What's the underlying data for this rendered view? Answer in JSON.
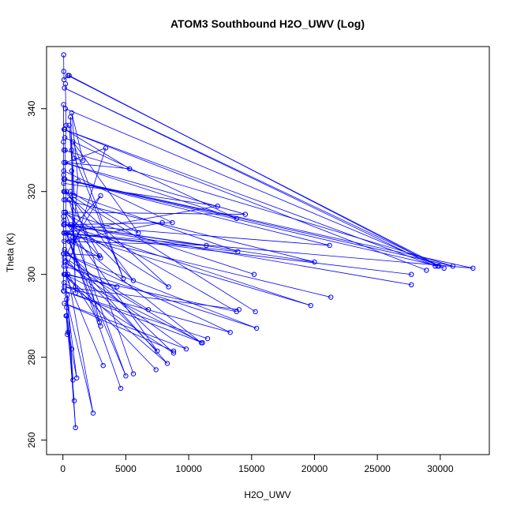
{
  "chart_data": {
    "type": "line",
    "title": "ATOM3 Southbound H2O_UWV (Log)",
    "xlabel": "H2O_UWV",
    "ylabel": "Theta (K)",
    "xlim": [
      -1300,
      33900
    ],
    "ylim": [
      256.5,
      355
    ],
    "x_ticks": [
      0,
      5000,
      10000,
      15000,
      20000,
      25000,
      30000
    ],
    "x_tick_labels": [
      "0",
      "5000",
      "10000",
      "15000",
      "20000",
      "25000",
      "30000"
    ],
    "y_ticks": [
      260,
      280,
      300,
      320,
      340
    ],
    "y_tick_labels": [
      "260",
      "280",
      "300",
      "320",
      "340"
    ],
    "grid": false,
    "legend": "none",
    "series_color": "#0000ff",
    "marker": "open-circle",
    "series": [
      {
        "x": [
          60,
          70,
          90,
          400,
          500,
          29800
        ],
        "y": [
          353,
          349,
          347,
          348,
          348,
          302
        ]
      },
      {
        "x": [
          400,
          30300,
          120,
          29600,
          90,
          28900
        ],
        "y": [
          348,
          301.5,
          345,
          302,
          335,
          301
        ]
      },
      {
        "x": [
          80,
          31000,
          150,
          32600,
          110,
          27700
        ],
        "y": [
          330,
          302,
          323,
          301.5,
          310,
          300
        ]
      },
      {
        "x": [
          200,
          29900,
          70,
          21200,
          60,
          27700
        ],
        "y": [
          340,
          302,
          323,
          307,
          312,
          297.5
        ]
      },
      {
        "x": [
          90,
          20000,
          120,
          19700,
          100,
          21300
        ],
        "y": [
          318,
          303,
          312,
          292.5,
          310,
          294.5
        ]
      },
      {
        "x": [
          150,
          13800,
          80,
          14500,
          200,
          15200
        ],
        "y": [
          333,
          313.5,
          327,
          314.5,
          315,
          300
        ]
      },
      {
        "x": [
          60,
          12300,
          90,
          13900,
          130,
          15300
        ],
        "y": [
          322,
          316.5,
          310,
          305.5,
          320,
          291
        ]
      },
      {
        "x": [
          70,
          8700,
          110,
          11400,
          100,
          7900
        ],
        "y": [
          325,
          312.5,
          312,
          307,
          308,
          312.5
        ]
      },
      {
        "x": [
          90,
          15400,
          80,
          13300,
          120,
          14000
        ],
        "y": [
          302,
          287,
          305,
          286,
          297,
          291.5
        ]
      },
      {
        "x": [
          70,
          13800,
          150,
          11100,
          90,
          11500
        ],
        "y": [
          315,
          291,
          300,
          283.5,
          296,
          284.5
        ]
      },
      {
        "x": [
          80,
          11000,
          120,
          9800,
          110,
          8800
        ],
        "y": [
          310,
          283.5,
          303,
          282,
          293,
          281.5
        ]
      },
      {
        "x": [
          100,
          8800,
          130,
          8300,
          90,
          7400
        ],
        "y": [
          298,
          281,
          306,
          278.5,
          300,
          277
        ]
      },
      {
        "x": [
          70,
          8400,
          90,
          7500,
          120,
          6800
        ],
        "y": [
          320,
          297,
          313,
          281.5,
          304,
          291.5
        ]
      },
      {
        "x": [
          300,
          5600,
          200,
          5000,
          250,
          4600
        ],
        "y": [
          320,
          298.5,
          315,
          275.5,
          310,
          272.5
        ]
      },
      {
        "x": [
          150,
          5300,
          200,
          3400,
          180,
          3200
        ],
        "y": [
          335,
          325.5,
          327,
          330.5,
          300,
          278
        ]
      },
      {
        "x": [
          200,
          2400,
          300,
          1100,
          400,
          900
        ],
        "y": [
          303,
          266.5,
          294,
          275,
          286,
          269.5
        ]
      },
      {
        "x": [
          300,
          1000,
          350,
          800,
          250,
          700
        ],
        "y": [
          292,
          263,
          295,
          274.5,
          290,
          282
        ]
      },
      {
        "x": [
          400,
          3000,
          300,
          2900,
          500,
          3000
        ],
        "y": [
          310,
          319,
          305,
          304.5,
          318,
          287.5
        ]
      },
      {
        "x": [
          600,
          3000,
          500,
          2900,
          400,
          4300
        ],
        "y": [
          312,
          304,
          308,
          288.5,
          300,
          297
        ]
      },
      {
        "x": [
          700,
          4800,
          800,
          6000,
          600,
          5600
        ],
        "y": [
          330,
          299,
          332,
          310,
          320,
          276
        ]
      },
      {
        "x": [
          900,
          1600,
          700,
          1200,
          800,
          1000
        ],
        "y": [
          328,
          327.5,
          339,
          322.5,
          309,
          297
        ]
      },
      {
        "x": [
          500,
          900,
          600,
          1000,
          700,
          800
        ],
        "y": [
          336,
          319,
          338,
          295.5,
          325,
          308
        ]
      },
      {
        "x": [
          50,
          40,
          60,
          55,
          45,
          50
        ],
        "y": [
          341,
          332,
          324,
          314,
          305,
          296
        ]
      },
      {
        "x": [
          200,
          250,
          180,
          220,
          300,
          350
        ],
        "y": [
          346,
          336,
          330,
          318,
          290,
          285.5
        ]
      }
    ]
  }
}
